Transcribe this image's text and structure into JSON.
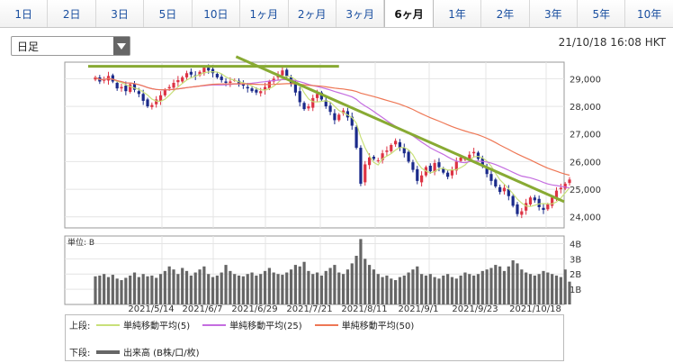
{
  "tabs": [
    {
      "label": "1日",
      "active": false
    },
    {
      "label": "2日",
      "active": false
    },
    {
      "label": "3日",
      "active": false
    },
    {
      "label": "5日",
      "active": false
    },
    {
      "label": "10日",
      "active": false
    },
    {
      "label": "1ヶ月",
      "active": false
    },
    {
      "label": "2ヶ月",
      "active": false
    },
    {
      "label": "3ヶ月",
      "active": false
    },
    {
      "label": "6ヶ月",
      "active": true
    },
    {
      "label": "1年",
      "active": false
    },
    {
      "label": "2年",
      "active": false
    },
    {
      "label": "3年",
      "active": false
    },
    {
      "label": "5年",
      "active": false
    },
    {
      "label": "10年",
      "active": false
    }
  ],
  "period_select": {
    "value": "日足"
  },
  "timestamp": "21/10/18 16:08 HKT",
  "chart_data": {
    "type": "candlestick",
    "x_tick_labels": [
      "2021/5/14",
      "2021/6/7",
      "2021/6/29",
      "2021/7/21",
      "2021/8/11",
      "2021/9/1",
      "2021/9/23",
      "2021/10/18"
    ],
    "price_axis": {
      "labels": [
        "29,000",
        "28,000",
        "27,000",
        "26,000",
        "25,000",
        "24,000"
      ],
      "ticks": [
        29000,
        28000,
        27000,
        26000,
        25000,
        24000
      ],
      "ylim": [
        23600,
        29600
      ]
    },
    "volume_axis": {
      "unit_label": "単位: B",
      "labels": [
        "4B",
        "3B",
        "2B",
        "1B"
      ],
      "ticks": [
        4,
        3,
        2,
        1
      ],
      "ylim": [
        0,
        4.5
      ]
    },
    "closes": [
      29050,
      28900,
      28960,
      29100,
      28900,
      28650,
      28700,
      28550,
      28800,
      28600,
      28450,
      28200,
      28000,
      28050,
      28250,
      28400,
      28600,
      28700,
      28850,
      28950,
      29050,
      29200,
      29150,
      29100,
      29250,
      29400,
      29300,
      29200,
      29050,
      28950,
      28850,
      28900,
      28950,
      28800,
      28750,
      28650,
      28550,
      28500,
      28550,
      28700,
      28900,
      29000,
      29150,
      29300,
      29100,
      28800,
      28500,
      28150,
      27900,
      28000,
      28300,
      28450,
      28250,
      28000,
      27800,
      27500,
      27700,
      27850,
      27600,
      27300,
      26500,
      25200,
      25900,
      26150,
      26100,
      26050,
      26300,
      26400,
      26600,
      26750,
      26500,
      26300,
      26000,
      25700,
      25300,
      25500,
      25800,
      25650,
      25950,
      25800,
      25600,
      25450,
      25700,
      26000,
      26150,
      26100,
      26250,
      26350,
      26100,
      25850,
      25550,
      25300,
      25100,
      24900,
      25050,
      24750,
      24400,
      24100,
      24200,
      24500,
      24700,
      24600,
      24350,
      24250,
      24450,
      24700,
      24950,
      25050,
      25200,
      25350
    ],
    "volumes": [
      1.85,
      1.9,
      2.0,
      1.8,
      1.95,
      1.7,
      1.6,
      1.75,
      1.9,
      2.1,
      1.8,
      2.0,
      1.85,
      1.9,
      1.75,
      2.0,
      2.2,
      2.5,
      2.3,
      2.0,
      2.4,
      2.2,
      1.9,
      2.1,
      2.3,
      2.5,
      2.0,
      1.8,
      1.9,
      2.1,
      2.6,
      2.2,
      2.0,
      1.9,
      1.85,
      2.0,
      2.1,
      1.9,
      2.0,
      2.2,
      2.4,
      2.1,
      2.0,
      1.95,
      2.1,
      2.3,
      2.6,
      2.5,
      2.8,
      2.2,
      2.0,
      2.1,
      1.9,
      2.2,
      2.4,
      2.6,
      2.1,
      2.0,
      2.3,
      2.7,
      3.2,
      4.3,
      3.0,
      2.6,
      2.3,
      2.0,
      1.8,
      1.9,
      1.7,
      1.6,
      1.8,
      1.9,
      2.1,
      2.3,
      2.5,
      2.0,
      1.9,
      2.0,
      1.8,
      1.7,
      1.9,
      2.0,
      1.8,
      1.7,
      1.9,
      2.1,
      2.0,
      1.9,
      2.0,
      2.2,
      2.3,
      2.4,
      2.6,
      2.5,
      2.2,
      2.5,
      2.9,
      2.7,
      2.3,
      2.1,
      2.0,
      1.9,
      2.0,
      2.2,
      2.1,
      2.0,
      1.9,
      1.8,
      2.3,
      1.5
    ],
    "series": [
      {
        "name": "単純移動平均(5)",
        "color": "#c8e07a",
        "period": 5
      },
      {
        "name": "単純移動平均(25)",
        "color": "#c46de0",
        "period": 25
      },
      {
        "name": "単純移動平均(50)",
        "color": "#ee7755",
        "period": 50
      }
    ],
    "volume_series": {
      "name": "出来高 (B株/口/枚)",
      "color": "#666666"
    },
    "trend_lines": [
      {
        "color": "#88aa33",
        "from": {
          "index": 0,
          "price": 29450
        },
        "to": {
          "index": 56,
          "price": 29450
        }
      },
      {
        "color": "#88aa33",
        "from": {
          "index": 34,
          "price": 29800
        },
        "to": {
          "index": 109,
          "price": 24550
        }
      }
    ],
    "up_color": "#dd3344",
    "down_color": "#1a2a8a"
  },
  "legend": {
    "upper_label": "上段:",
    "lower_label": "下段:",
    "upper_items": [
      "単純移動平均(5)",
      "単純移動平均(25)",
      "単純移動平均(50)"
    ],
    "lower_items": [
      "出来高 (B株/口/枚)"
    ],
    "colors": {
      "ma5": "#c8e07a",
      "ma25": "#c46de0",
      "ma50": "#ee7755",
      "volume": "#666666"
    }
  }
}
